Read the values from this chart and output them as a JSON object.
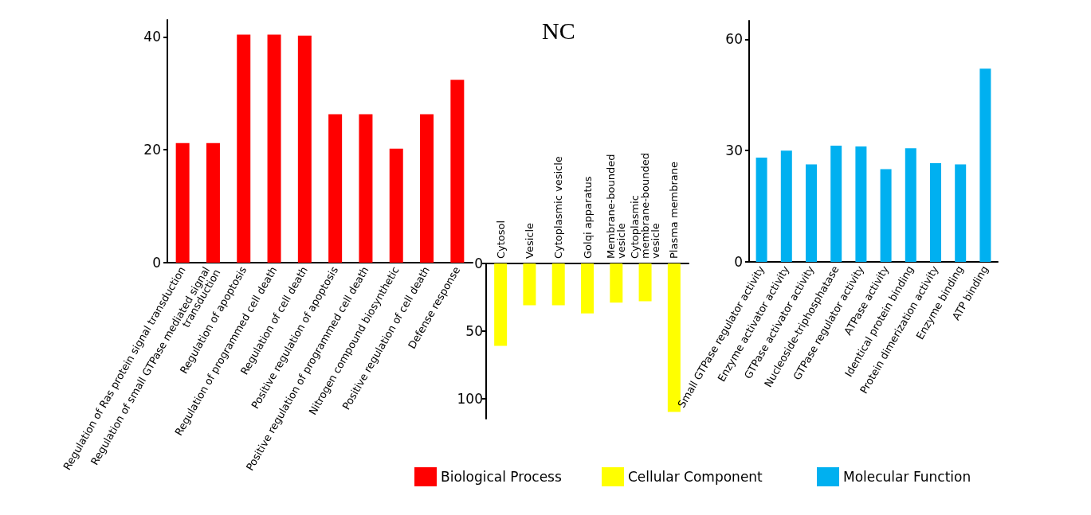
{
  "chart_data": [
    {
      "type": "bar",
      "categories": [
        "Regulation of Ras protein signal transduction",
        "Regulation of small GTPase mediated signal transduction",
        "Regulation of apoptosis",
        "Regulation of programmed cell death",
        "Regulation of cell death",
        "Positive regulation of apoptosis",
        "Positive regulation of programmed cell death",
        "Nitrogen compound biosynthetic",
        "Positive regulation of cell death",
        "Defense response"
      ],
      "series": [
        {
          "name": "Biological Process",
          "color": "#ff0000",
          "values": [
            21.2,
            21.2,
            40.4,
            40.4,
            40.2,
            26.3,
            26.3,
            20.2,
            26.3,
            32.4
          ]
        }
      ],
      "ylim": [
        0,
        43
      ],
      "yticks": [
        0,
        20,
        40
      ],
      "legend": "bottom"
    },
    {
      "type": "bar",
      "title": "NC",
      "categories": [
        "Cytosol",
        "Vesicle",
        "Cytoplasmic vesicle",
        "Golqi apparatus",
        "Membrane-bounded vesicle",
        "Cytoplasmic membrane-bounded vesicle",
        "Plasma membrane"
      ],
      "series": [
        {
          "name": "Cellular Component",
          "color": "#ffff00",
          "values": [
            61,
            31,
            31,
            37,
            29,
            28,
            110
          ]
        }
      ],
      "ylim": [
        115,
        0
      ],
      "yticks": [
        0,
        50,
        100
      ],
      "legend": "bottom"
    },
    {
      "type": "bar",
      "categories": [
        "Small GTPase regulator activity",
        "Enzyme activator activity",
        "GTPase activator activity",
        "Nucleoside-triphosphatase",
        "GTPase regulator activity",
        "ATPase activity",
        "Identical protein binding",
        "Protein dimerization activity",
        "Enzyme binding",
        "ATP binding"
      ],
      "series": [
        {
          "name": "Molecular Function",
          "color": "#00b0f0",
          "values": [
            28.1,
            30.0,
            26.3,
            31.3,
            31.1,
            25.0,
            30.6,
            26.6,
            26.3,
            52.1
          ]
        }
      ],
      "ylim": [
        0,
        65
      ],
      "yticks": [
        0,
        30,
        60
      ],
      "legend": "bottom"
    }
  ]
}
